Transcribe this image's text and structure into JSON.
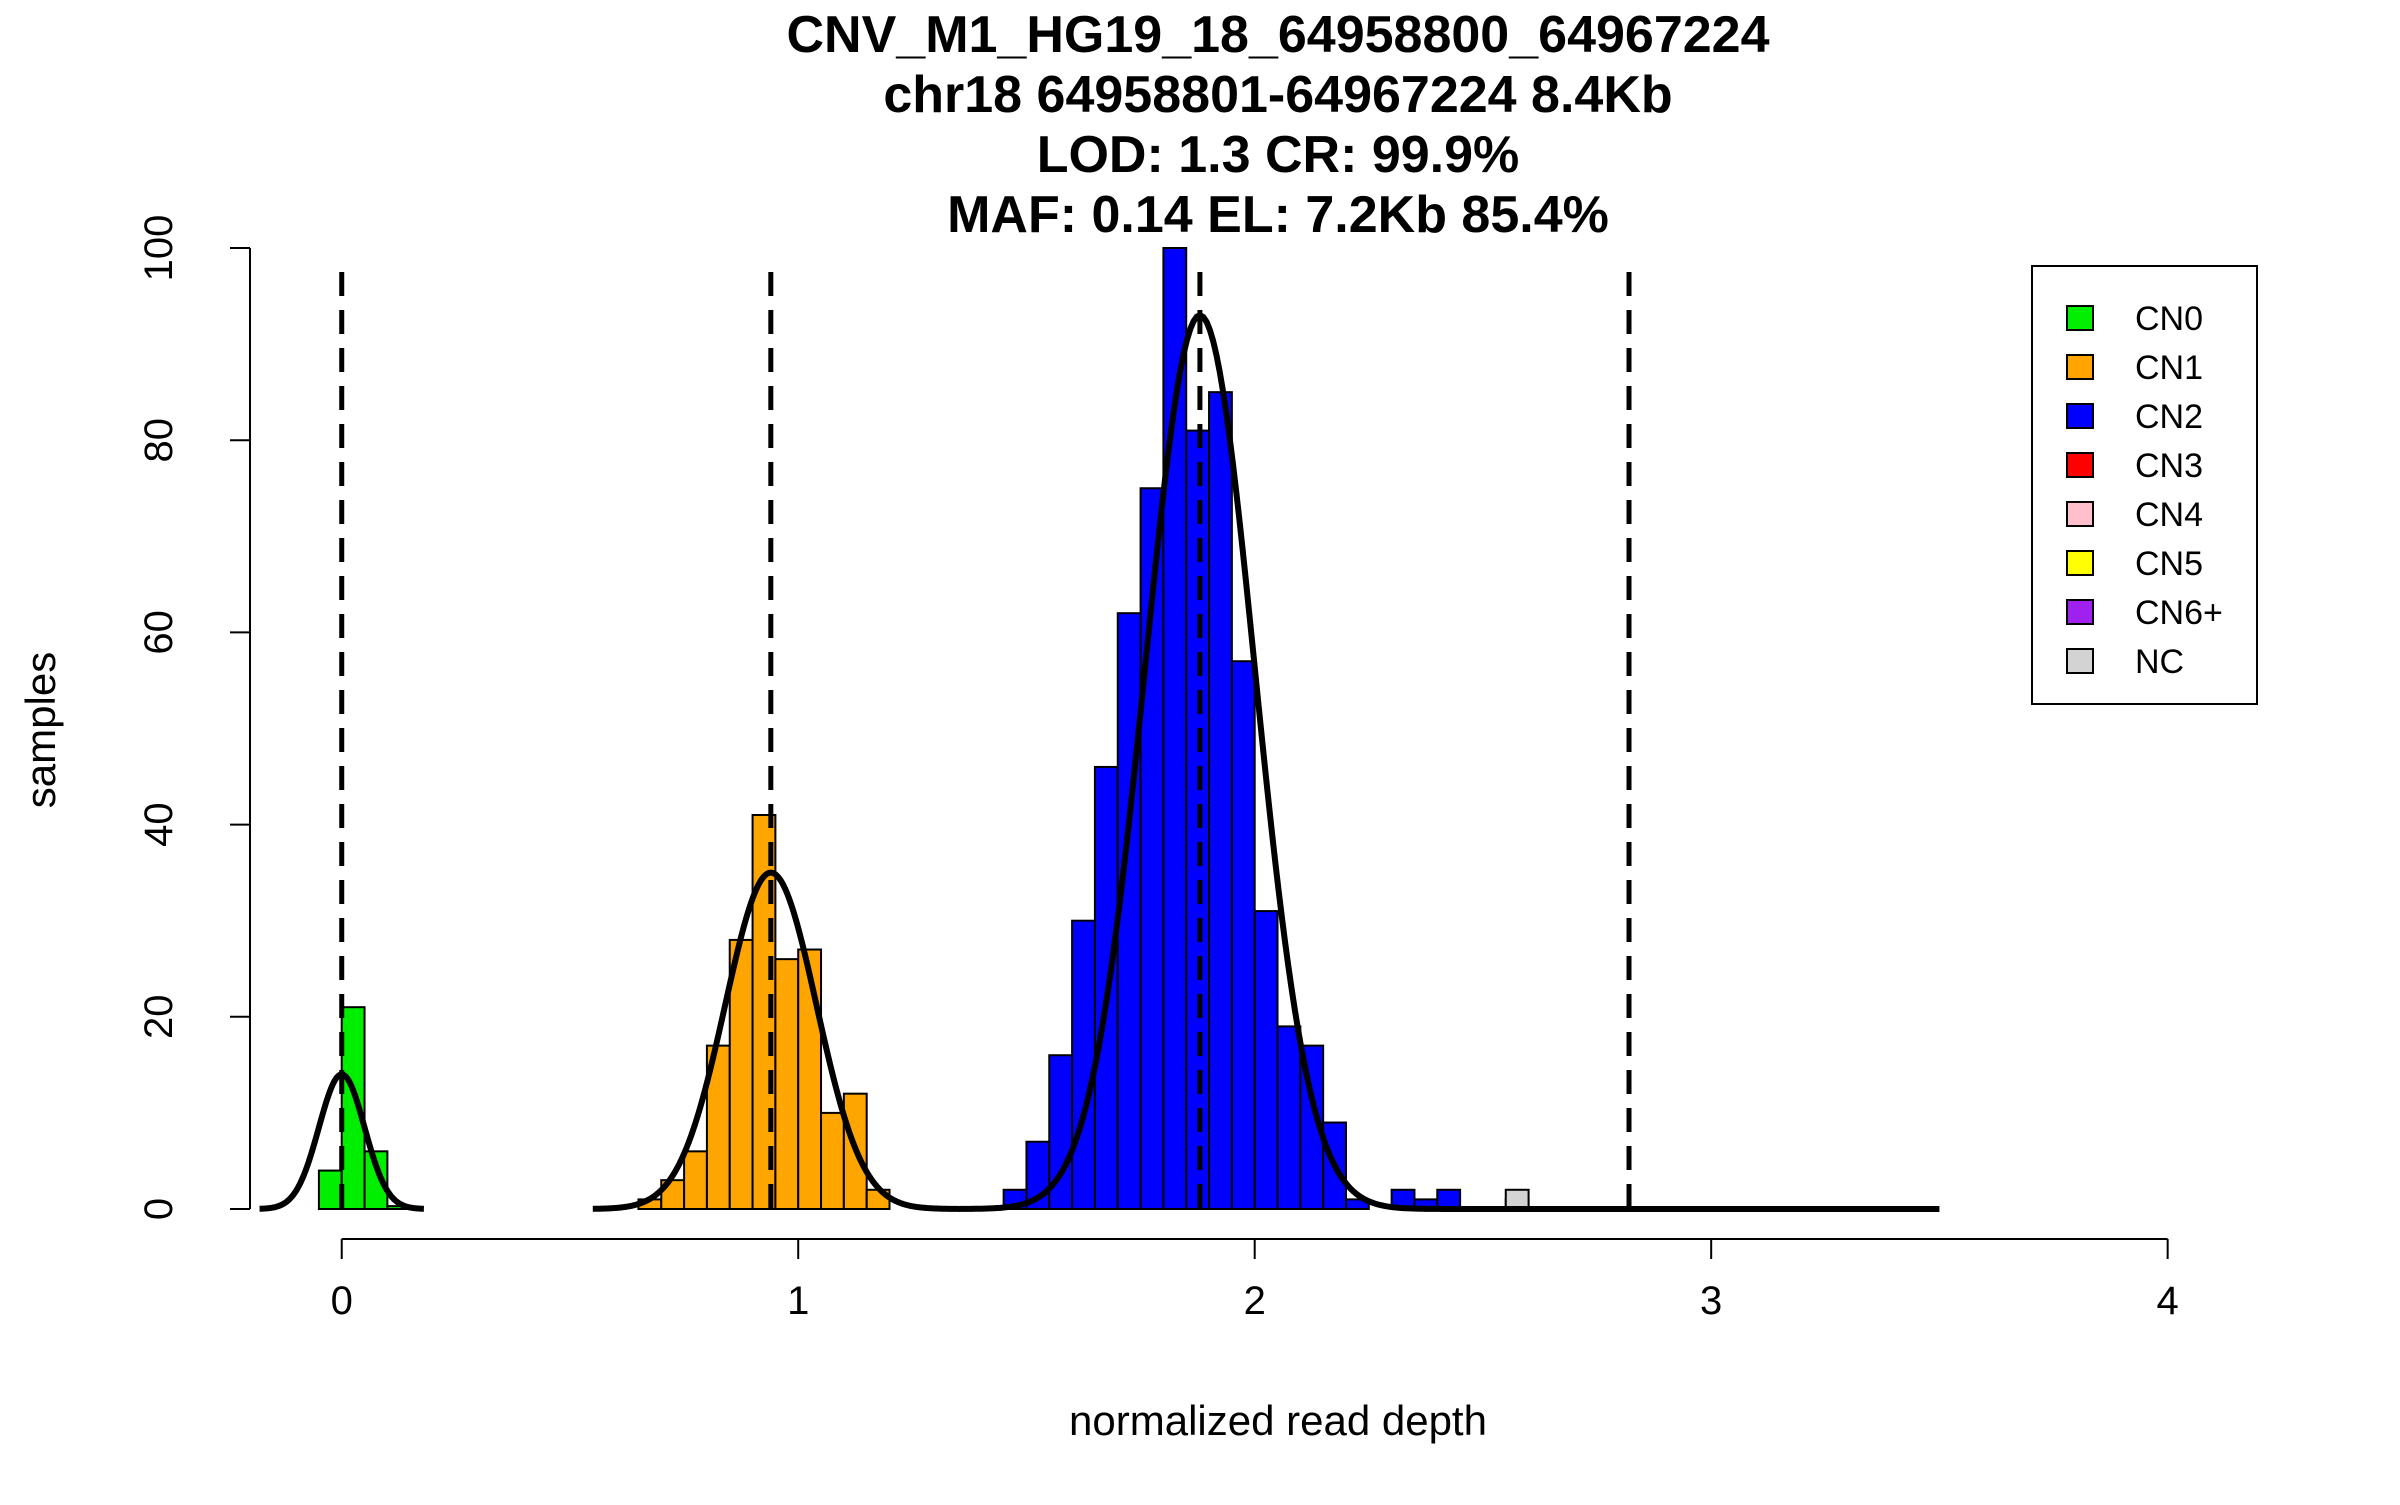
{
  "chart_data": {
    "type": "bar",
    "title_lines": [
      "CNV_M1_HG19_18_64958800_64967224",
      "chr18 64958801-64967224 8.4Kb",
      "LOD: 1.3 CR: 99.9%",
      "MAF: 0.14 EL: 7.2Kb 85.4%"
    ],
    "xlabel": "normalized read depth",
    "ylabel": "samples",
    "xlim": [
      -0.19,
      4.13
    ],
    "ylim": [
      0,
      100
    ],
    "x_ticks": [
      0,
      1,
      2,
      3,
      4
    ],
    "x_tick_labels": [
      "0",
      "1",
      "2",
      "3",
      "4"
    ],
    "y_ticks": [
      0,
      20,
      40,
      60,
      80,
      100
    ],
    "y_tick_labels": [
      "0",
      "20",
      "40",
      "60",
      "80",
      "100"
    ],
    "bin_width": 0.05,
    "series": [
      {
        "name": "CN0",
        "color": "#00ee00",
        "bins": [
          [
            -0.025,
            4
          ],
          [
            0.025,
            21
          ],
          [
            0.075,
            6
          ],
          [
            0.125,
            0.3
          ]
        ]
      },
      {
        "name": "CN1",
        "color": "#ffa500",
        "bins": [
          [
            0.675,
            1
          ],
          [
            0.725,
            3
          ],
          [
            0.775,
            6
          ],
          [
            0.825,
            17
          ],
          [
            0.875,
            28
          ],
          [
            0.925,
            41
          ],
          [
            0.975,
            26
          ],
          [
            1.025,
            27
          ],
          [
            1.075,
            10
          ],
          [
            1.125,
            12
          ],
          [
            1.175,
            2
          ]
        ]
      },
      {
        "name": "CN2",
        "color": "#0000ff",
        "bins": [
          [
            1.475,
            2
          ],
          [
            1.525,
            7
          ],
          [
            1.575,
            16
          ],
          [
            1.625,
            30
          ],
          [
            1.675,
            46
          ],
          [
            1.725,
            62
          ],
          [
            1.775,
            75
          ],
          [
            1.825,
            100
          ],
          [
            1.875,
            81
          ],
          [
            1.925,
            85
          ],
          [
            1.975,
            57
          ],
          [
            2.025,
            31
          ],
          [
            2.075,
            19
          ],
          [
            2.125,
            17
          ],
          [
            2.175,
            9
          ],
          [
            2.225,
            1
          ],
          [
            2.325,
            2
          ],
          [
            2.375,
            1
          ],
          [
            2.425,
            2
          ],
          [
            2.575,
            1
          ]
        ]
      },
      {
        "name": "NC",
        "color": "#d3d3d3",
        "bins": [
          [
            2.575,
            2
          ]
        ]
      }
    ],
    "fitted_curves": [
      {
        "mean": 0.0,
        "sd": 0.05,
        "peak": 14,
        "x_range": [
          -0.18,
          0.18
        ]
      },
      {
        "mean": 0.94,
        "sd": 0.1,
        "peak": 35,
        "x_range": [
          0.55,
          1.35
        ]
      },
      {
        "mean": 1.88,
        "sd": 0.12,
        "peak": 93,
        "x_range": [
          1.35,
          3.5
        ]
      }
    ],
    "dashed_lines_x": [
      0.0,
      0.94,
      1.88,
      2.82
    ],
    "legend": {
      "position": "top-right",
      "entries": [
        {
          "label": "CN0",
          "color": "#00ee00"
        },
        {
          "label": "CN1",
          "color": "#ffa500"
        },
        {
          "label": "CN2",
          "color": "#0000ff"
        },
        {
          "label": "CN3",
          "color": "#ff0000"
        },
        {
          "label": "CN4",
          "color": "#ffc0cb"
        },
        {
          "label": "CN5",
          "color": "#ffff00"
        },
        {
          "label": "CN6+",
          "color": "#a020f0"
        },
        {
          "label": "NC",
          "color": "#d3d3d3"
        }
      ]
    }
  }
}
